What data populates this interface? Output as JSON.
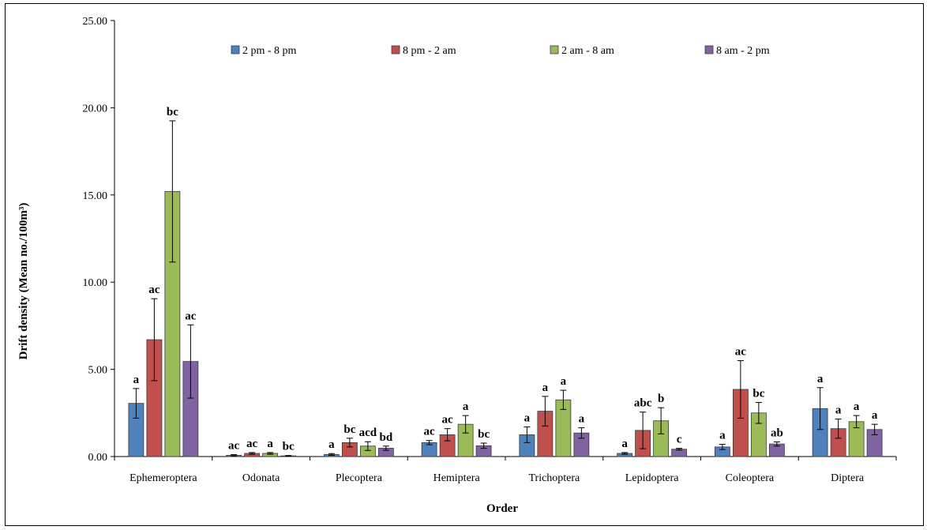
{
  "chart_data": {
    "type": "bar",
    "xlabel": "Order",
    "ylabel": "Drift density (Mean no./100m³)",
    "ylim": [
      0,
      25
    ],
    "yticks": [
      "0.00",
      "5.00",
      "10.00",
      "15.00",
      "20.00",
      "25.00"
    ],
    "grid": false,
    "legend_position": "top",
    "categories": [
      "Ephemeroptera",
      "Odonata",
      "Plecoptera",
      "Hemiptera",
      "Trichoptera",
      "Lepidoptera",
      "Coleoptera",
      "Diptera"
    ],
    "series": [
      {
        "name": "2 pm - 8 pm",
        "color": "#4f81bd",
        "values": [
          3.05,
          0.07,
          0.12,
          0.8,
          1.25,
          0.18,
          0.55,
          2.75
        ],
        "errors": [
          0.85,
          0.04,
          0.05,
          0.12,
          0.45,
          0.05,
          0.15,
          1.2
        ],
        "labels": [
          "a",
          "ac",
          "a",
          "ac",
          "a",
          "a",
          "a",
          "a"
        ]
      },
      {
        "name": "8 pm - 2 am",
        "color": "#c0504d",
        "values": [
          6.7,
          0.18,
          0.8,
          1.25,
          2.6,
          1.5,
          3.85,
          1.6
        ],
        "errors": [
          2.35,
          0.05,
          0.25,
          0.35,
          0.85,
          1.05,
          1.65,
          0.55
        ],
        "labels": [
          "ac",
          "ac",
          "bc",
          "ac",
          "a",
          "abc",
          "ac",
          "a"
        ]
      },
      {
        "name": "2 am - 8 am",
        "color": "#9bbb59",
        "values": [
          15.2,
          0.18,
          0.6,
          1.85,
          3.25,
          2.05,
          2.5,
          2.0
        ],
        "errors": [
          4.05,
          0.05,
          0.25,
          0.5,
          0.55,
          0.75,
          0.6,
          0.35
        ],
        "labels": [
          "bc",
          "a",
          "acd",
          "a",
          "a",
          "b",
          "bc",
          "a"
        ]
      },
      {
        "name": "8 am - 2 pm",
        "color": "#8064a2",
        "values": [
          5.45,
          0.04,
          0.48,
          0.62,
          1.35,
          0.42,
          0.72,
          1.55
        ],
        "errors": [
          2.1,
          0.02,
          0.12,
          0.15,
          0.3,
          0.05,
          0.12,
          0.3
        ],
        "labels": [
          "ac",
          "bc",
          "bd",
          "bc",
          "a",
          "c",
          "ab",
          "a"
        ]
      }
    ]
  }
}
